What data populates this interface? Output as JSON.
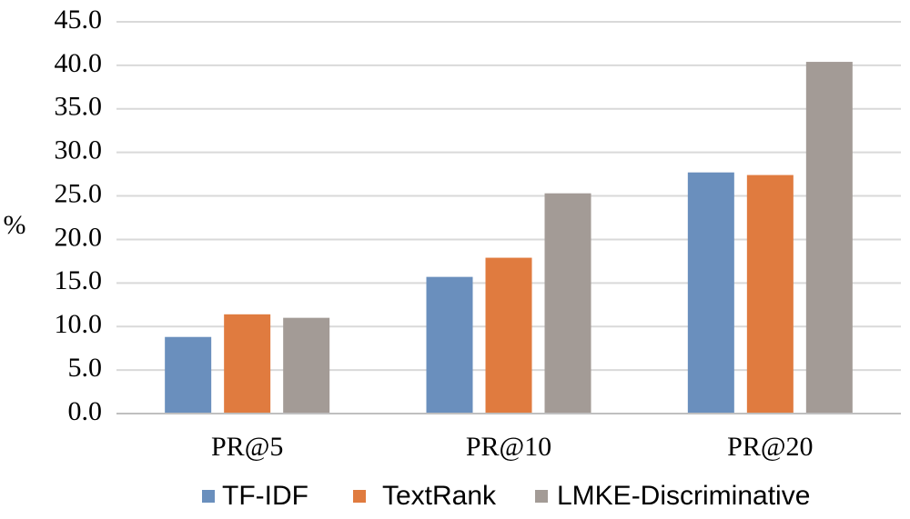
{
  "chart_data": {
    "type": "bar",
    "ylabel": "%",
    "xlabel": "",
    "ylim": [
      0,
      45
    ],
    "yticks": [
      "0.0",
      "5.0",
      "10.0",
      "15.0",
      "20.0",
      "25.0",
      "30.0",
      "35.0",
      "40.0",
      "45.0"
    ],
    "categories": [
      "PR@5",
      "PR@10",
      "PR@20"
    ],
    "series": [
      {
        "name": "TF-IDF",
        "color": "#6a8fbd",
        "values": [
          8.8,
          15.7,
          27.7
        ]
      },
      {
        "name": "TextRank",
        "color": "#e07b3f",
        "values": [
          11.4,
          17.9,
          27.4
        ]
      },
      {
        "name": "LMKE-Discriminative",
        "color": "#a39b96",
        "values": [
          11.0,
          25.3,
          40.4
        ]
      }
    ],
    "grid": true,
    "legend_position": "bottom-right"
  }
}
